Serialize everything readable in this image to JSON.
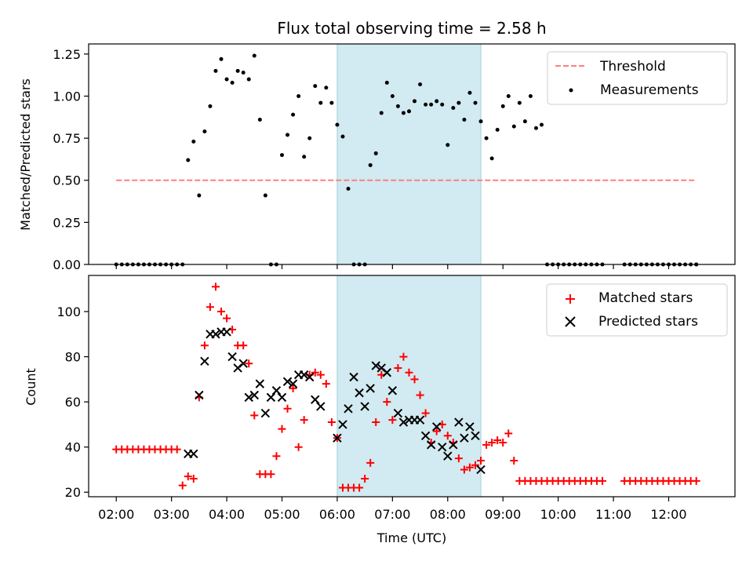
{
  "figure": {
    "title": "Flux total observing time = 2.58 h",
    "xlabel": "Time (UTC)",
    "x_ticks": [
      "02:00",
      "03:00",
      "04:00",
      "05:00",
      "06:00",
      "07:00",
      "08:00",
      "09:00",
      "10:00",
      "11:00",
      "12:00"
    ]
  },
  "chart_data": [
    {
      "type": "scatter",
      "ylabel": "Matched/Predicted stars",
      "xlim_hours": [
        1.5,
        13.2
      ],
      "ylim": [
        0,
        1.31
      ],
      "y_ticks": [
        "0.00",
        "0.25",
        "0.50",
        "0.75",
        "1.00",
        "1.25"
      ],
      "shaded_region_hours": [
        6.0,
        8.6
      ],
      "shade_color": "#add8e6",
      "grid": false,
      "legend_position": "top-right",
      "threshold": {
        "name": "Threshold",
        "value": 0.5,
        "x_range_hours": [
          2.0,
          12.5
        ],
        "color": "#ff7f7f"
      },
      "series": [
        {
          "name": "Measurements",
          "color": "#000000",
          "x_hours": [
            2.0,
            2.1,
            2.2,
            2.3,
            2.4,
            2.5,
            2.6,
            2.7,
            2.8,
            2.9,
            3.0,
            3.1,
            3.2,
            3.3,
            3.4,
            3.5,
            3.6,
            3.7,
            3.8,
            3.9,
            4.0,
            4.1,
            4.2,
            4.3,
            4.4,
            4.5,
            4.6,
            4.7,
            4.8,
            4.9,
            5.0,
            5.1,
            5.2,
            5.3,
            5.4,
            5.5,
            5.6,
            5.7,
            5.8,
            5.9,
            6.0,
            6.1,
            6.2,
            6.3,
            6.4,
            6.5,
            6.6,
            6.7,
            6.8,
            6.9,
            7.0,
            7.1,
            7.2,
            7.3,
            7.4,
            7.5,
            7.6,
            7.7,
            7.8,
            7.9,
            8.0,
            8.1,
            8.2,
            8.3,
            8.4,
            8.5,
            8.6,
            8.7,
            8.8,
            8.9,
            9.0,
            9.1,
            9.2,
            9.3,
            9.4,
            9.5,
            9.6,
            9.7,
            9.8,
            9.9,
            10.0,
            10.1,
            10.2,
            10.3,
            10.4,
            10.5,
            10.6,
            10.7,
            10.8,
            11.2,
            11.3,
            11.4,
            11.5,
            11.6,
            11.7,
            11.8,
            11.9,
            12.0,
            12.1,
            12.2,
            12.3,
            12.4,
            12.5,
            12.5
          ],
          "y": [
            0,
            0,
            0,
            0,
            0,
            0,
            0,
            0,
            0,
            0,
            0,
            0,
            0.0,
            0.62,
            0.73,
            0.41,
            0.79,
            0.94,
            1.15,
            1.22,
            1.1,
            1.08,
            1.15,
            1.14,
            1.1,
            1.24,
            0.86,
            0.41,
            0,
            0,
            0.65,
            0.77,
            0.89,
            1.0,
            0.64,
            0.75,
            1.06,
            0.96,
            1.05,
            0.96,
            0.83,
            0.76,
            0.45,
            0,
            0,
            0,
            0.59,
            0.66,
            0.9,
            1.08,
            1.0,
            0.94,
            0.9,
            0.91,
            0.97,
            1.07,
            0.95,
            0.95,
            0.97,
            0.95,
            0.71,
            0.93,
            0.96,
            0.86,
            1.02,
            0.96,
            0.85,
            0.75,
            0.63,
            0.8,
            0.94,
            1.0,
            0.82,
            0.96,
            0.85,
            1.0,
            0.81,
            0.83,
            0,
            0,
            0,
            0,
            0,
            0,
            0,
            0,
            0,
            0,
            0,
            0,
            0,
            0,
            0,
            0,
            0,
            0,
            0,
            0,
            0,
            0,
            0,
            0,
            0,
            0
          ]
        }
      ]
    },
    {
      "type": "scatter",
      "ylabel": "Count",
      "xlim_hours": [
        1.5,
        13.2
      ],
      "ylim": [
        18,
        116
      ],
      "y_ticks": [
        "20",
        "40",
        "60",
        "80",
        "100"
      ],
      "shaded_region_hours": [
        6.0,
        8.6
      ],
      "shade_color": "#add8e6",
      "grid": false,
      "legend_position": "top-right",
      "series": [
        {
          "name": "Matched stars",
          "marker": "plus",
          "color": "#ff0000",
          "x_hours": [
            2.0,
            2.1,
            2.2,
            2.3,
            2.4,
            2.5,
            2.6,
            2.7,
            2.8,
            2.9,
            3.0,
            3.1,
            3.2,
            3.3,
            3.4,
            3.5,
            3.6,
            3.7,
            3.8,
            3.9,
            4.0,
            4.1,
            4.2,
            4.3,
            4.4,
            4.5,
            4.6,
            4.7,
            4.8,
            4.9,
            5.0,
            5.1,
            5.2,
            5.3,
            5.4,
            5.5,
            5.6,
            5.7,
            5.8,
            5.9,
            6.0,
            6.1,
            6.2,
            6.3,
            6.4,
            6.5,
            6.6,
            6.7,
            6.8,
            6.9,
            7.0,
            7.1,
            7.2,
            7.3,
            7.4,
            7.5,
            7.6,
            7.7,
            7.8,
            7.9,
            8.0,
            8.1,
            8.2,
            8.3,
            8.4,
            8.5,
            8.6,
            8.7,
            8.8,
            8.9,
            9.0,
            9.1,
            9.2,
            9.3,
            9.4,
            9.5,
            9.6,
            9.7,
            9.8,
            9.9,
            10.0,
            10.1,
            10.2,
            10.3,
            10.4,
            10.5,
            10.6,
            10.7,
            10.8,
            11.2,
            11.3,
            11.4,
            11.5,
            11.6,
            11.7,
            11.8,
            11.9,
            12.0,
            12.1,
            12.2,
            12.3,
            12.4,
            12.5
          ],
          "y": [
            39,
            39,
            39,
            39,
            39,
            39,
            39,
            39,
            39,
            39,
            39,
            39,
            23,
            27,
            26,
            62,
            85,
            102,
            111,
            100,
            97,
            92,
            85,
            85,
            77,
            54,
            28,
            28,
            28,
            36,
            48,
            57,
            66,
            40,
            52,
            72,
            73,
            72,
            68,
            51,
            44,
            22,
            22,
            22,
            22,
            26,
            33,
            51,
            72,
            60,
            52,
            75,
            80,
            73,
            70,
            63,
            55,
            42,
            47,
            50,
            45,
            42,
            35,
            30,
            31,
            32,
            34,
            41,
            42,
            43,
            42,
            46,
            34,
            25,
            25,
            25,
            25,
            25,
            25,
            25,
            25,
            25,
            25,
            25,
            25,
            25,
            25,
            25,
            25,
            25,
            25,
            25,
            25,
            25,
            25,
            25,
            25,
            25,
            25,
            25,
            25,
            25,
            25
          ]
        },
        {
          "name": "Predicted stars",
          "marker": "x",
          "color": "#000000",
          "x_hours": [
            3.3,
            3.4,
            3.5,
            3.6,
            3.7,
            3.8,
            3.9,
            4.0,
            4.1,
            4.2,
            4.3,
            4.4,
            4.5,
            4.6,
            4.7,
            4.8,
            4.9,
            5.0,
            5.1,
            5.2,
            5.3,
            5.4,
            5.5,
            5.6,
            5.7,
            6.0,
            6.1,
            6.2,
            6.3,
            6.4,
            6.5,
            6.6,
            6.7,
            6.8,
            6.9,
            7.0,
            7.1,
            7.2,
            7.3,
            7.4,
            7.5,
            7.6,
            7.7,
            7.8,
            7.9,
            8.0,
            8.1,
            8.2,
            8.3,
            8.4,
            8.5,
            8.6
          ],
          "y": [
            37,
            37,
            63,
            78,
            90,
            90,
            91,
            91,
            80,
            75,
            77,
            62,
            63,
            68,
            55,
            62,
            65,
            62,
            69,
            68,
            72,
            72,
            71,
            61,
            58,
            44,
            50,
            57,
            71,
            64,
            58,
            66,
            76,
            75,
            73,
            65,
            55,
            51,
            52,
            52,
            52,
            45,
            41,
            49,
            40,
            36,
            41,
            51,
            44,
            49,
            45,
            30
          ]
        }
      ]
    }
  ]
}
